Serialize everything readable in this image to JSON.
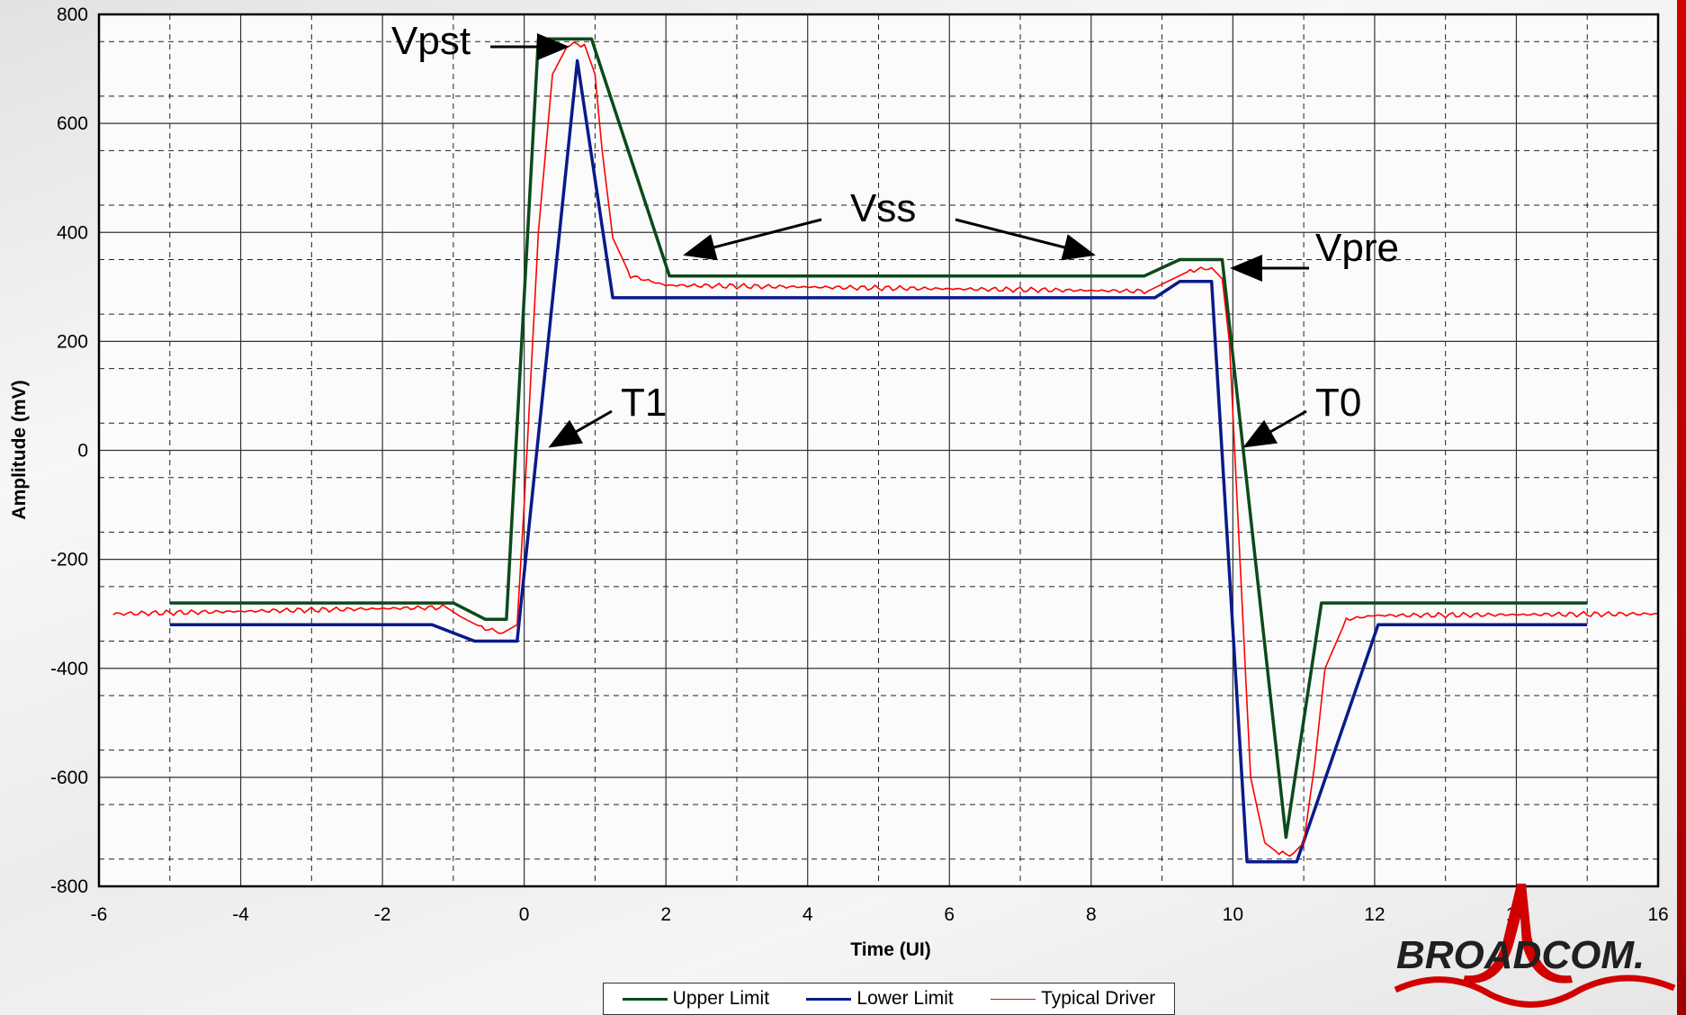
{
  "chart_data": {
    "type": "line",
    "xlabel": "Time (UI)",
    "ylabel": "Amplitude (mV)",
    "xlim": [
      -6,
      16
    ],
    "ylim": [
      -800,
      800
    ],
    "x_ticks": [
      -6,
      -4,
      -2,
      0,
      2,
      4,
      6,
      8,
      10,
      12,
      14,
      16
    ],
    "y_ticks": [
      -800,
      -600,
      -400,
      -200,
      0,
      200,
      400,
      600,
      800
    ],
    "grid": "major solid, minor dashed",
    "legend_position": "bottom",
    "series": [
      {
        "name": "Upper Limit",
        "color": "#0b4a1a",
        "x": [
          -5,
          -1,
          -0.55,
          -0.25,
          0.2,
          0.2,
          0.95,
          2.05,
          8.75,
          9.25,
          9.85,
          10.75,
          11.25,
          15
        ],
        "y": [
          -280,
          -280,
          -310,
          -310,
          755,
          755,
          755,
          320,
          320,
          350,
          350,
          -710,
          -280,
          -280
        ]
      },
      {
        "name": "Lower Limit",
        "color": "#0a1a8a",
        "x": [
          -5,
          -1.3,
          -0.7,
          -0.1,
          0.75,
          1.25,
          8.9,
          9.25,
          9.7,
          10.2,
          10.9,
          12.05,
          15
        ],
        "y": [
          -320,
          -320,
          -350,
          -350,
          715,
          280,
          280,
          310,
          310,
          -755,
          -755,
          -320,
          -320
        ]
      },
      {
        "name": "Typical Driver",
        "color": "#ff0000",
        "x": [
          -5.8,
          -1.1,
          -0.9,
          -0.6,
          -0.3,
          -0.1,
          0,
          0.2,
          0.4,
          0.6,
          0.7,
          0.85,
          1.0,
          1.1,
          1.25,
          1.5,
          2.0,
          5,
          8.8,
          9.0,
          9.4,
          9.7,
          9.85,
          9.95,
          10.1,
          10.25,
          10.45,
          10.65,
          10.85,
          11.0,
          11.15,
          11.3,
          11.6,
          12,
          16
        ],
        "y": [
          -300,
          -288,
          -305,
          -325,
          -335,
          -320,
          -100,
          400,
          690,
          740,
          745,
          745,
          690,
          550,
          390,
          320,
          303,
          298,
          292,
          305,
          330,
          335,
          315,
          200,
          -200,
          -600,
          -720,
          -740,
          -740,
          -720,
          -580,
          -400,
          -310,
          -303,
          -300
        ]
      }
    ],
    "annotations": [
      "Vpst",
      "Vss",
      "Vpre",
      "T1",
      "T0"
    ]
  },
  "legend": {
    "upper": "Upper Limit",
    "lower": "Lower Limit",
    "typical": "Typical Driver"
  },
  "logo": {
    "text": "BROADCOM.",
    "color": "#d10000"
  }
}
